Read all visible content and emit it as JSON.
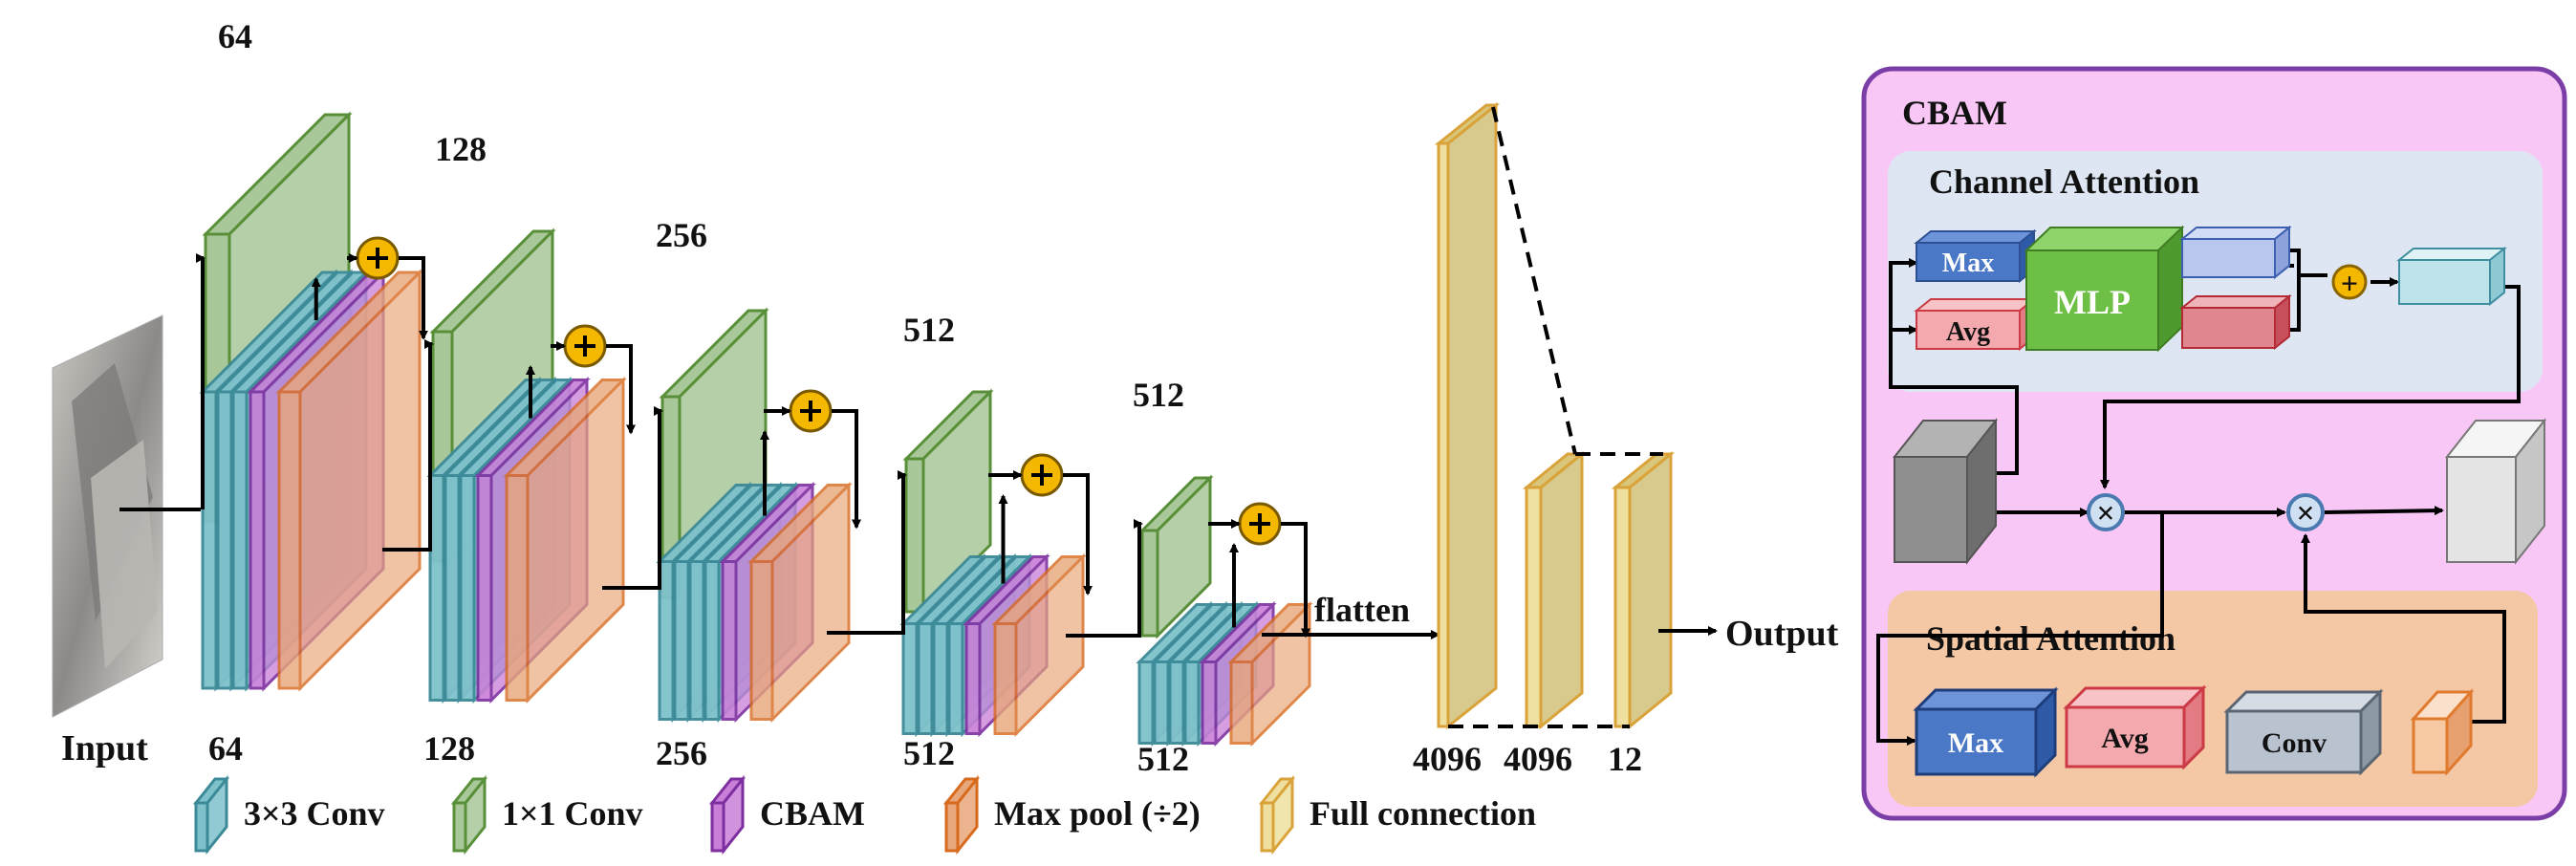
{
  "labels": {
    "input": "Input",
    "output": "Output",
    "flatten": "flatten",
    "cbam_title": "CBAM",
    "channel_attention": "Channel Attention",
    "spatial_attention": "Spatial Attention",
    "mlp": "MLP",
    "max": "Max",
    "avg": "Avg",
    "conv": "Conv",
    "plus": "+",
    "times": "×"
  },
  "stages": [
    {
      "top": "64",
      "bottom": "64"
    },
    {
      "top": "128",
      "bottom": "128"
    },
    {
      "top": "256",
      "bottom": "256"
    },
    {
      "top": "512",
      "bottom": "512"
    },
    {
      "top": "512",
      "bottom": "512"
    }
  ],
  "fc_sizes": [
    "4096",
    "4096",
    "12"
  ],
  "legend": [
    {
      "label": "3×3 Conv",
      "color": "#7ec1cb"
    },
    {
      "label": "1×1 Conv",
      "color": "#a8c89a"
    },
    {
      "label": "CBAM",
      "color": "#c97fd8"
    },
    {
      "label": "Max pool (÷2)",
      "color": "#e8a77a"
    },
    {
      "label": "Full connection",
      "color": "#efe0a0"
    }
  ],
  "colors": {
    "conv3": "#7ec1cb",
    "conv1": "#a8c89a",
    "cbam": "#c97fd8",
    "pool": "#e8a77a",
    "fc": "#efe0a0",
    "plus_node": "#f5b800",
    "cbam_panel_bg": "#f8c7f5",
    "cbam_panel_border": "#7b3da6",
    "channel_bg": "#dde6f2",
    "spatial_bg": "#f4c7a5",
    "mlp": "#6dbf45",
    "max_block": "#4a78c6",
    "avg_block": "#f4a9ae",
    "conv_block": "#b9c3cf",
    "blue_out": "#b9c7ee",
    "red_out": "#e0868f",
    "teal_out": "#bfe3ea",
    "gray_in": "#8f8f8f",
    "gray_out": "#e5e5e5"
  },
  "icons": [
    "plus-icon",
    "multiply-icon",
    "arrow-icon",
    "input-photo"
  ]
}
